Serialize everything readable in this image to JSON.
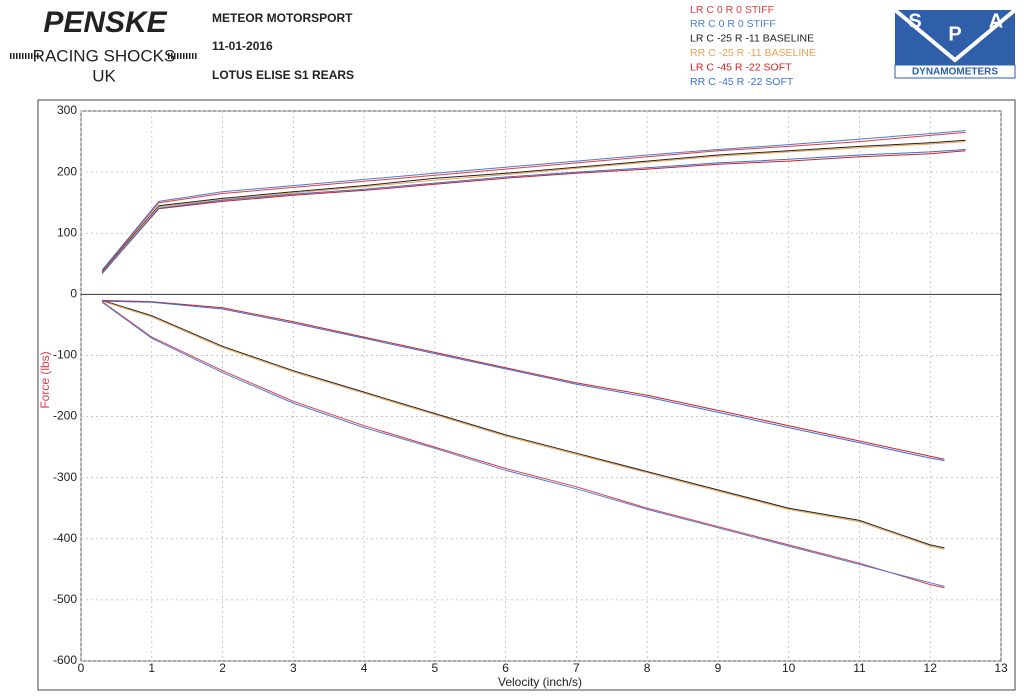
{
  "header": {
    "left_logo": [
      "PENSKE",
      "RACING SHOCKS",
      "UK"
    ],
    "info": [
      "METEOR MOTORSPORT",
      "11-01-2016",
      "LOTUS ELISE S1 REARS"
    ],
    "right_logo": [
      "S",
      "P",
      "A",
      "DYNAMOMETERS"
    ]
  },
  "chart_data": {
    "type": "line",
    "x_label": "Velocity (inch/s)",
    "y_label": "Force (lbs)",
    "x": [
      0.3,
      1.1,
      2,
      3,
      4,
      5,
      6,
      7,
      8,
      9,
      10,
      11,
      12,
      12.5,
      null,
      0.3,
      1,
      2,
      3,
      4,
      5,
      6,
      7,
      8,
      9,
      10,
      11,
      12,
      12.2
    ],
    "series": [
      {
        "name": "LR C 0  R 0 STIFF",
        "color": "#e23a46",
        "values": [
          38,
          150,
          165,
          175,
          185,
          195,
          205,
          215,
          225,
          235,
          242,
          250,
          260,
          265,
          null,
          -12,
          -70,
          -125,
          -175,
          -215,
          -250,
          -285,
          -315,
          -350,
          -380,
          -410,
          -440,
          -475,
          -480
        ]
      },
      {
        "name": "RR  C 0  R 0  STIFF",
        "color": "#4a7fd0",
        "values": [
          40,
          152,
          168,
          178,
          188,
          198,
          208,
          218,
          228,
          237,
          245,
          254,
          263,
          268,
          null,
          -13,
          -72,
          -128,
          -178,
          -218,
          -252,
          -288,
          -318,
          -352,
          -382,
          -412,
          -442,
          -472,
          -478
        ]
      },
      {
        "name": "LR C -25  R -11 BASELINE",
        "color": "#222222",
        "values": [
          37,
          145,
          157,
          168,
          178,
          190,
          198,
          208,
          218,
          228,
          235,
          242,
          248,
          252,
          null,
          -10,
          -35,
          -85,
          -125,
          -160,
          -195,
          -230,
          -260,
          -290,
          -320,
          -350,
          -370,
          -410,
          -415
        ]
      },
      {
        "name": "RR C -25  R -11  BASELINE",
        "color": "#f0a050",
        "values": [
          36,
          143,
          155,
          166,
          176,
          187,
          196,
          206,
          216,
          226,
          233,
          240,
          246,
          250,
          null,
          -11,
          -37,
          -87,
          -127,
          -162,
          -197,
          -232,
          -262,
          -292,
          -322,
          -352,
          -372,
          -412,
          -417
        ]
      },
      {
        "name": "LR C -45  R -22 SOFT",
        "color": "#d42020",
        "values": [
          35,
          140,
          152,
          162,
          170,
          180,
          190,
          198,
          205,
          213,
          218,
          225,
          230,
          235,
          null,
          -10,
          -12,
          -22,
          -45,
          -70,
          -95,
          -120,
          -145,
          -165,
          -190,
          -215,
          -240,
          -265,
          -270
        ]
      },
      {
        "name": "RR C -45  R -22 SOFT",
        "color": "#3a6fd8",
        "values": [
          34,
          141,
          154,
          164,
          172,
          182,
          192,
          200,
          207,
          215,
          221,
          228,
          233,
          237,
          null,
          -11,
          -13,
          -24,
          -47,
          -72,
          -97,
          -122,
          -147,
          -168,
          -193,
          -218,
          -243,
          -268,
          -272
        ]
      }
    ],
    "xlim": [
      0,
      13
    ],
    "xticks": [
      0,
      1,
      2,
      3,
      4,
      5,
      6,
      7,
      8,
      9,
      10,
      11,
      12,
      13
    ],
    "ylim": [
      -600,
      300
    ],
    "yticks": [
      300,
      200,
      100,
      0,
      -100,
      -200,
      -300,
      -400,
      -500,
      -600
    ],
    "grid": true
  }
}
